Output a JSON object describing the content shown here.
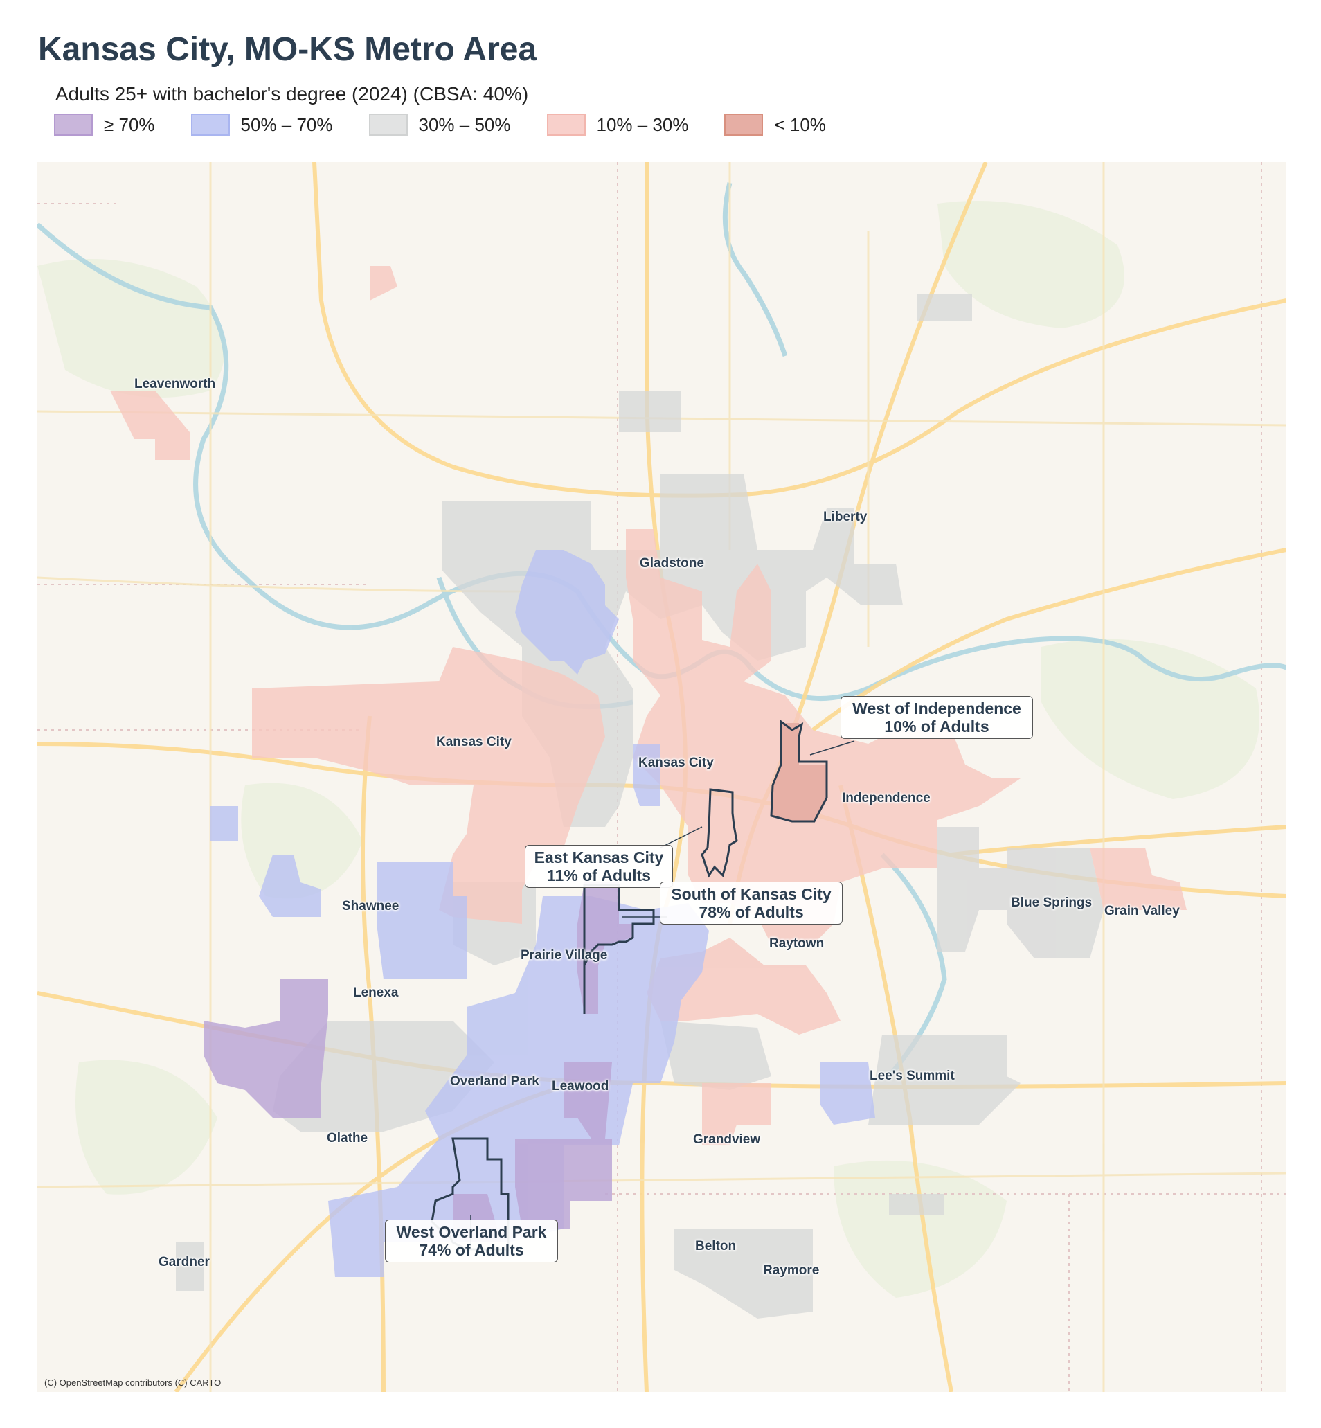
{
  "title": "Kansas City, MO-KS Metro Area",
  "subtitle": "Adults 25+ with bachelor's degree (2024)  (CBSA: 40%)",
  "legend": [
    {
      "label": "≥ 70%",
      "fill": "#c9b6db",
      "border": "#b49ad0"
    },
    {
      "label": "50% – 70%",
      "fill": "#c3cbf4",
      "border": "#a9b5f0"
    },
    {
      "label": "30% – 50%",
      "fill": "#e2e3e3",
      "border": "#d0d2d2"
    },
    {
      "label": "10% – 30%",
      "fill": "#f8d0cb",
      "border": "#f2b6ae"
    },
    {
      "label": "< 10%",
      "fill": "#e6aea4",
      "border": "#d8907f"
    }
  ],
  "places": {
    "leavenworth": "Leavenworth",
    "liberty": "Liberty",
    "gladstone": "Gladstone",
    "kansas_city_ks": "Kansas City",
    "kansas_city_mo": "Kansas City",
    "independence": "Independence",
    "shawnee": "Shawnee",
    "blue_springs": "Blue Springs",
    "grain_valley": "Grain Valley",
    "raytown": "Raytown",
    "prairie_village": "Prairie Village",
    "lenexa": "Lenexa",
    "lees_summit": "Lee's Summit",
    "overland_park": "Overland Park",
    "leawood": "Leawood",
    "olathe": "Olathe",
    "grandview": "Grandview",
    "belton": "Belton",
    "raymore": "Raymore",
    "gardner": "Gardner"
  },
  "callouts": {
    "west_independence": {
      "name": "West of Independence",
      "value": "10% of Adults"
    },
    "east_kc": {
      "name": "East Kansas City",
      "value": "11% of Adults"
    },
    "south_kc": {
      "name": "South of Kansas City",
      "value": "78% of Adults"
    },
    "west_op": {
      "name": "West Overland Park",
      "value": "74% of Adults"
    }
  },
  "attribution": "(C) OpenStreetMap contributors (C) CARTO"
}
